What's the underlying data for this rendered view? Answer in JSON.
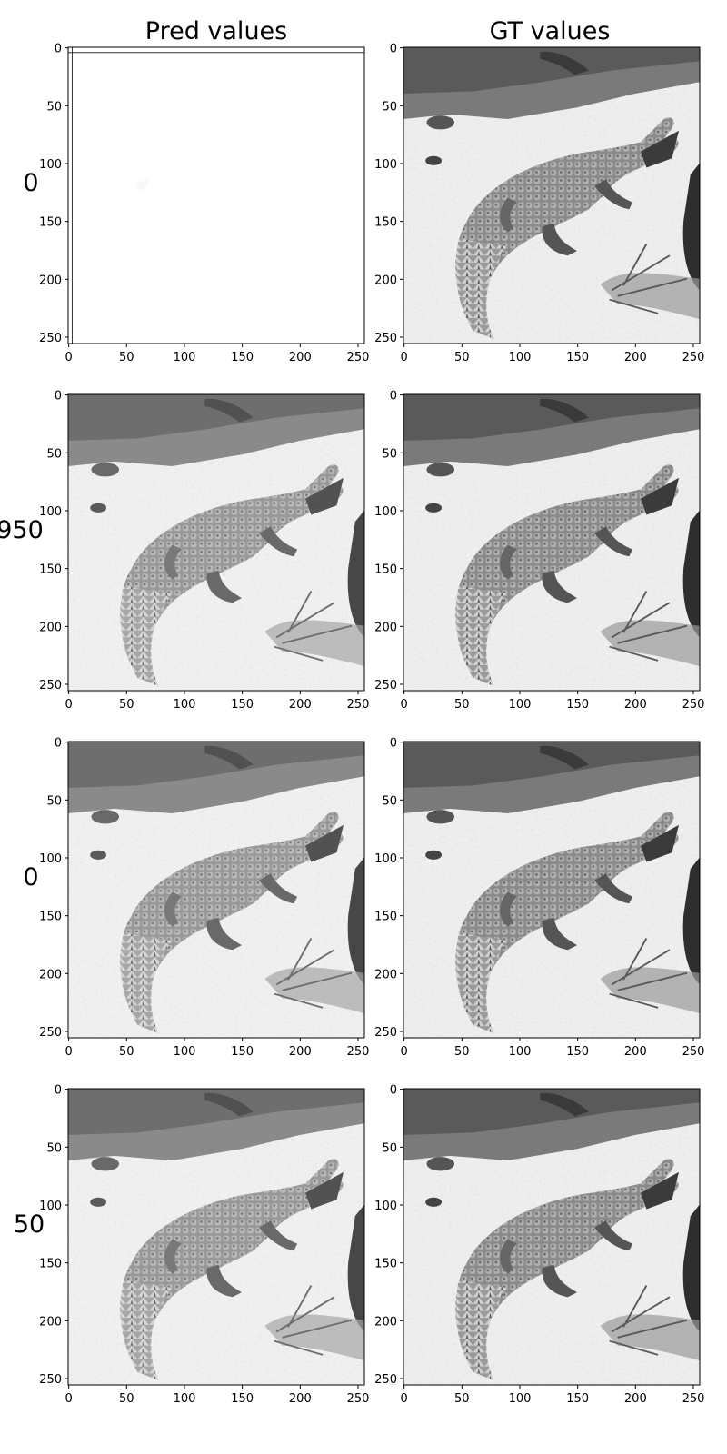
{
  "chart_data": {
    "type": "heatmap",
    "description_note": "",
    "columns": [
      "Pred values",
      "GT values"
    ],
    "rows": [
      "0",
      "950",
      "0",
      "50"
    ],
    "xticks": [
      0,
      50,
      100,
      150,
      200,
      250
    ],
    "yticks": [
      0,
      50,
      100,
      150,
      200,
      250
    ],
    "xlim": [
      -0.5,
      255.5
    ],
    "ylim": [
      255.5,
      -0.5
    ],
    "colormap": "gray",
    "image_size": [
      256,
      256
    ],
    "panels": [
      {
        "row": 0,
        "col": 0,
        "content": "blurry-noise"
      },
      {
        "row": 0,
        "col": 1,
        "content": "crocodile"
      },
      {
        "row": 1,
        "col": 0,
        "content": "crocodile-approx"
      },
      {
        "row": 1,
        "col": 1,
        "content": "crocodile"
      },
      {
        "row": 2,
        "col": 0,
        "content": "crocodile-approx"
      },
      {
        "row": 2,
        "col": 1,
        "content": "crocodile"
      },
      {
        "row": 3,
        "col": 0,
        "content": "crocodile-approx"
      },
      {
        "row": 3,
        "col": 1,
        "content": "crocodile"
      }
    ]
  },
  "colors": {
    "background": "#ffffff",
    "axis": "#000000"
  }
}
